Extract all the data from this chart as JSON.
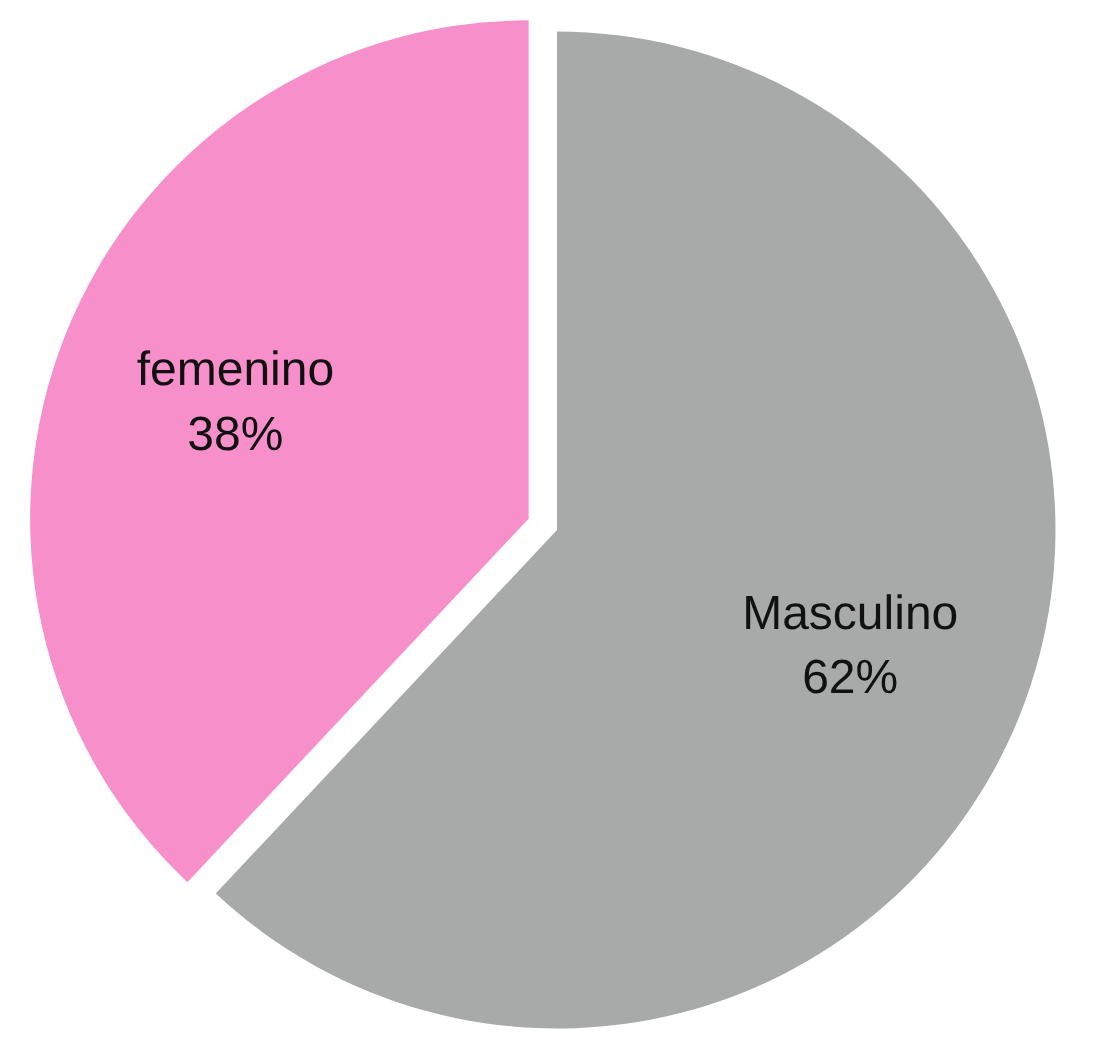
{
  "chart_data": {
    "type": "pie",
    "categories": [
      "Masculino",
      "femenino"
    ],
    "values": [
      62,
      38
    ],
    "colors": [
      "#a8aaa9",
      "#f68fca"
    ],
    "value_labels": [
      "62%",
      "38%"
    ]
  }
}
